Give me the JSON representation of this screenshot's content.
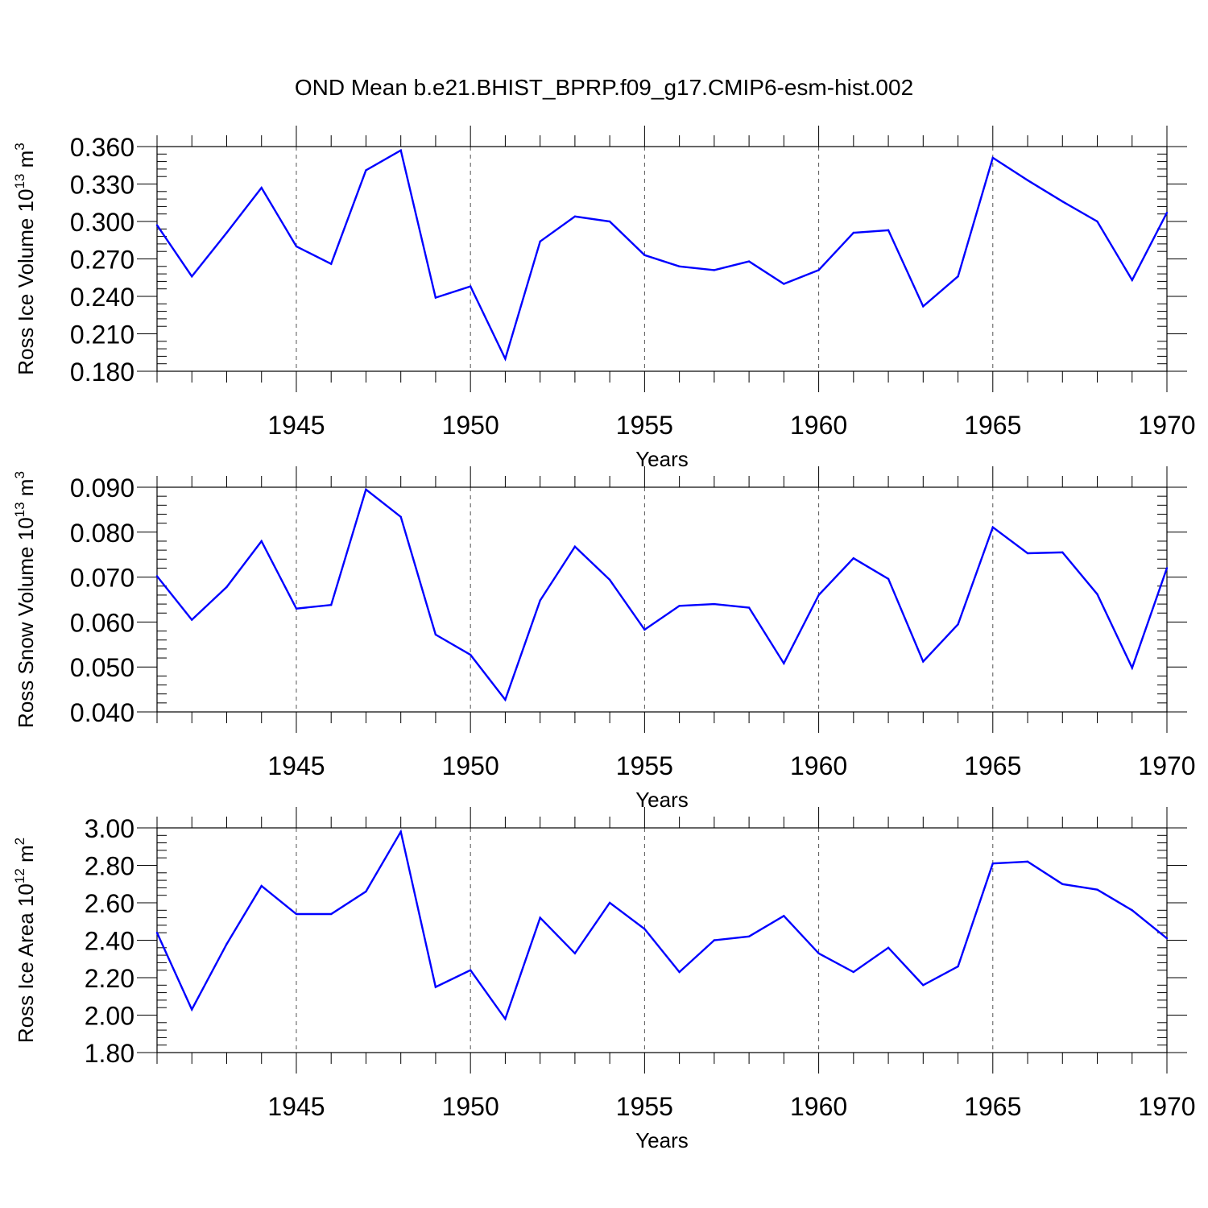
{
  "figure": {
    "title": "OND Mean b.e21.BHIST_BPRP.f09_g17.CMIP6-esm-hist.002"
  },
  "style": {
    "line_color": "#0000ff",
    "axis_color": "#000000",
    "grid_color": "#555555"
  },
  "chart_data": [
    {
      "type": "line",
      "ylabel": "Ross Ice Volume 10",
      "ylabel_exp": "13",
      "ylabel_unit": " m",
      "ylabel_unit_exp": "3",
      "xlabel": "Years",
      "xlim": [
        1941,
        1970
      ],
      "ylim": [
        0.18,
        0.36
      ],
      "yticks": [
        0.18,
        0.21,
        0.24,
        0.27,
        0.3,
        0.33,
        0.36
      ],
      "ytick_labels": [
        "0.180",
        "0.210",
        "0.240",
        "0.270",
        "0.300",
        "0.330",
        "0.360"
      ],
      "xticks": [
        1945,
        1950,
        1955,
        1960,
        1965,
        1970
      ],
      "xtick_labels": [
        "1945",
        "1950",
        "1955",
        "1960",
        "1965",
        "1970"
      ],
      "grid": "dashed vertical at major x ticks",
      "x": [
        1941,
        1942,
        1943,
        1944,
        1945,
        1946,
        1947,
        1948,
        1949,
        1950,
        1951,
        1952,
        1953,
        1954,
        1955,
        1956,
        1957,
        1958,
        1959,
        1960,
        1961,
        1962,
        1963,
        1964,
        1965,
        1966,
        1967,
        1968,
        1969,
        1970
      ],
      "series": [
        {
          "values": [
            0.297,
            0.256,
            0.291,
            0.327,
            0.28,
            0.266,
            0.341,
            0.357,
            0.239,
            0.248,
            0.19,
            0.284,
            0.304,
            0.3,
            0.273,
            0.264,
            0.261,
            0.268,
            0.25,
            0.261,
            0.291,
            0.293,
            0.232,
            0.256,
            0.351,
            0.333,
            0.316,
            0.3,
            0.253,
            0.307
          ]
        }
      ]
    },
    {
      "type": "line",
      "ylabel": "Ross Snow Volume 10",
      "ylabel_exp": "13",
      "ylabel_unit": " m",
      "ylabel_unit_exp": "3",
      "xlabel": "Years",
      "xlim": [
        1941,
        1970
      ],
      "ylim": [
        0.04,
        0.09
      ],
      "yticks": [
        0.04,
        0.05,
        0.06,
        0.07,
        0.08,
        0.09
      ],
      "ytick_labels": [
        "0.040",
        "0.050",
        "0.060",
        "0.070",
        "0.080",
        "0.090"
      ],
      "xticks": [
        1945,
        1950,
        1955,
        1960,
        1965,
        1970
      ],
      "xtick_labels": [
        "1945",
        "1950",
        "1955",
        "1960",
        "1965",
        "1970"
      ],
      "grid": "dashed vertical at major x ticks",
      "x": [
        1941,
        1942,
        1943,
        1944,
        1945,
        1946,
        1947,
        1948,
        1949,
        1950,
        1951,
        1952,
        1953,
        1954,
        1955,
        1956,
        1957,
        1958,
        1959,
        1960,
        1961,
        1962,
        1963,
        1964,
        1965,
        1966,
        1967,
        1968,
        1969,
        1970
      ],
      "series": [
        {
          "values": [
            0.0702,
            0.0605,
            0.0678,
            0.078,
            0.063,
            0.0638,
            0.0895,
            0.0834,
            0.0572,
            0.0527,
            0.0427,
            0.0648,
            0.0768,
            0.0694,
            0.0583,
            0.0636,
            0.064,
            0.0632,
            0.0508,
            0.066,
            0.0742,
            0.0696,
            0.0512,
            0.0595,
            0.0811,
            0.0753,
            0.0755,
            0.0662,
            0.0498,
            0.072
          ]
        }
      ]
    },
    {
      "type": "line",
      "ylabel": "Ross Ice Area 10",
      "ylabel_exp": "12",
      "ylabel_unit": " m",
      "ylabel_unit_exp": "2",
      "xlabel": "Years",
      "xlim": [
        1941,
        1970
      ],
      "ylim": [
        1.8,
        3.0
      ],
      "yticks": [
        1.8,
        2.0,
        2.2,
        2.4,
        2.6,
        2.8,
        3.0
      ],
      "ytick_labels": [
        "1.80",
        "2.00",
        "2.20",
        "2.40",
        "2.60",
        "2.80",
        "3.00"
      ],
      "xticks": [
        1945,
        1950,
        1955,
        1960,
        1965,
        1970
      ],
      "xtick_labels": [
        "1945",
        "1950",
        "1955",
        "1960",
        "1965",
        "1970"
      ],
      "grid": "dashed vertical at major x ticks",
      "x": [
        1941,
        1942,
        1943,
        1944,
        1945,
        1946,
        1947,
        1948,
        1949,
        1950,
        1951,
        1952,
        1953,
        1954,
        1955,
        1956,
        1957,
        1958,
        1959,
        1960,
        1961,
        1962,
        1963,
        1964,
        1965,
        1966,
        1967,
        1968,
        1969,
        1970
      ],
      "series": [
        {
          "values": [
            2.44,
            2.03,
            2.38,
            2.69,
            2.54,
            2.54,
            2.66,
            2.98,
            2.15,
            2.24,
            1.98,
            2.52,
            2.33,
            2.6,
            2.46,
            2.23,
            2.4,
            2.42,
            2.53,
            2.33,
            2.23,
            2.36,
            2.16,
            2.26,
            2.81,
            2.82,
            2.7,
            2.67,
            2.56,
            2.41
          ]
        }
      ]
    }
  ]
}
